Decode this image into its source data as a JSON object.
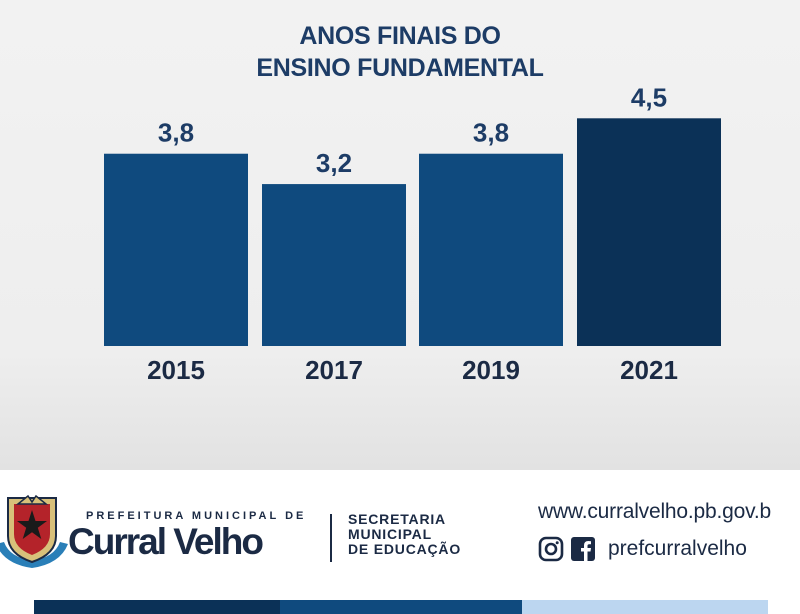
{
  "chart_data": {
    "type": "bar",
    "title": [
      "ANOS FINAIS DO",
      "ENSINO FUNDAMENTAL"
    ],
    "categories": [
      "2015",
      "2017",
      "2019",
      "2021"
    ],
    "values": [
      3.8,
      3.2,
      3.8,
      4.5
    ],
    "value_labels": [
      "3,8",
      "3,2",
      "3,8",
      "4,5"
    ],
    "bar_colors": [
      "#0f4a7e",
      "#0f4a7e",
      "#0f4a7e",
      "#0b3157"
    ],
    "xlabel": "",
    "ylabel": "",
    "grid": false,
    "legend": "none"
  },
  "footer": {
    "prefeitura_line": "PREFEITURA MUNICIPAL DE",
    "city_name": "Curral Velho",
    "secretaria": [
      "SECRETARIA",
      "MUNICIPAL",
      "DE EDUCAÇÃO"
    ],
    "website": "www.curralvelho.pb.gov.b",
    "social_handle": "prefcurralvelho",
    "icons": [
      "seal-icon",
      "instagram-icon",
      "facebook-icon"
    ],
    "stripe_colors": [
      "#0b3157",
      "#0f4a7e",
      "#bcd6f0"
    ]
  }
}
